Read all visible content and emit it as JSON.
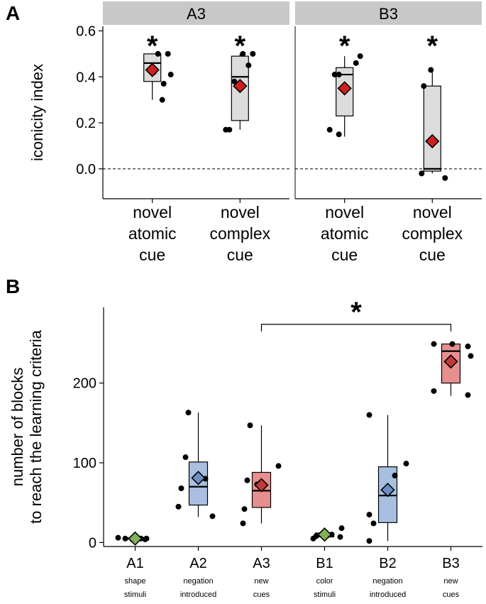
{
  "panels": {
    "A": {
      "label": "A"
    },
    "B": {
      "label": "B"
    }
  },
  "colors": {
    "box_gray": "#dcdcdc",
    "strip_gray": "#c8c8c8",
    "green": "#7fb25a",
    "blue": "#a9bfdf",
    "blue_diamond": "#6e8fc4",
    "red": "#e78f8f",
    "red_diamond": "#c0393b",
    "red_diamond_A": "#d11f1f"
  },
  "chart_data": [
    {
      "type": "box",
      "panel": "A",
      "ylabel": "iconicity index",
      "ylim": [
        -0.13,
        0.62
      ],
      "yticks": [
        "0.0",
        "0.2",
        "0.4",
        "0.6"
      ],
      "ytick_values": [
        0.0,
        0.2,
        0.4,
        0.6
      ],
      "reference_line": 0.0,
      "facets": [
        {
          "name": "A3",
          "groups": [
            {
              "label": [
                "novel",
                "atomic",
                "cue"
              ],
              "q1": 0.38,
              "median": 0.46,
              "q3": 0.5,
              "whisker_low": 0.3,
              "whisker_high": 0.5,
              "mean": 0.43,
              "points": [
                0.5,
                0.5,
                0.42,
                0.41,
                0.37,
                0.3
              ],
              "significance": "*"
            },
            {
              "label": [
                "novel",
                "complex",
                "cue"
              ],
              "q1": 0.21,
              "median": 0.4,
              "q3": 0.49,
              "whisker_low": 0.17,
              "whisker_high": 0.5,
              "mean": 0.36,
              "points": [
                0.5,
                0.5,
                0.45,
                0.38,
                0.17,
                0.17
              ],
              "significance": "*"
            }
          ]
        },
        {
          "name": "B3",
          "groups": [
            {
              "label": [
                "novel",
                "atomic",
                "cue"
              ],
              "q1": 0.23,
              "median": 0.41,
              "q3": 0.44,
              "whisker_low": 0.14,
              "whisker_high": 0.49,
              "mean": 0.35,
              "points": [
                0.49,
                0.46,
                0.41,
                0.41,
                0.17,
                0.15
              ],
              "significance": "*"
            },
            {
              "label": [
                "novel",
                "complex",
                "cue"
              ],
              "q1": -0.01,
              "median": 0.0,
              "q3": 0.36,
              "whisker_low": -0.02,
              "whisker_high": 0.43,
              "mean": 0.12,
              "points": [
                0.43,
                0.36,
                -0.02,
                -0.04
              ],
              "significance": "*"
            }
          ]
        }
      ]
    },
    {
      "type": "box",
      "panel": "B",
      "ylabel": [
        "number of blocks",
        "to reach the learning criteria"
      ],
      "ylim": [
        -5,
        295
      ],
      "yticks": [
        "0",
        "100",
        "200"
      ],
      "ytick_values": [
        0,
        100,
        200
      ],
      "groups": [
        {
          "label": "A1",
          "sublabel": [
            "shape",
            "stimuli"
          ],
          "color": "green",
          "q1": 4,
          "median": 5,
          "q3": 6,
          "whisker_low": 4,
          "whisker_high": 7,
          "mean": 5,
          "points": [
            6,
            5,
            5,
            5,
            4,
            4
          ]
        },
        {
          "label": "A2",
          "sublabel": [
            "negation",
            "introduced"
          ],
          "color": "blue",
          "q1": 47,
          "median": 70,
          "q3": 101,
          "whisker_low": 32,
          "whisker_high": 163,
          "mean": 81,
          "points": [
            163,
            107,
            80,
            68,
            45,
            33
          ]
        },
        {
          "label": "A3",
          "sublabel": [
            "new",
            "cues"
          ],
          "color": "red",
          "q1": 44,
          "median": 65,
          "q3": 88,
          "whisker_low": 24,
          "whisker_high": 147,
          "mean": 72,
          "points": [
            147,
            96,
            78,
            73,
            42,
            24
          ]
        },
        {
          "label": "B1",
          "sublabel": [
            "color",
            "stimuli"
          ],
          "color": "green",
          "q1": 7,
          "median": 9,
          "q3": 12,
          "whisker_low": 5,
          "whisker_high": 18,
          "mean": 10,
          "points": [
            18,
            10,
            9,
            8,
            7,
            5
          ]
        },
        {
          "label": "B2",
          "sublabel": [
            "negation",
            "introduced"
          ],
          "color": "blue",
          "q1": 25,
          "median": 59,
          "q3": 95,
          "whisker_low": 2,
          "whisker_high": 160,
          "mean": 66,
          "points": [
            160,
            99,
            84,
            35,
            24,
            2
          ]
        },
        {
          "label": "B3",
          "sublabel": [
            "new",
            "cues"
          ],
          "color": "red",
          "q1": 200,
          "median": 240,
          "q3": 249,
          "whisker_low": 184,
          "whisker_high": 249,
          "mean": 227,
          "points": [
            249,
            249,
            246,
            234,
            190,
            185
          ]
        }
      ],
      "comparison": {
        "from": "A3",
        "to": "B3",
        "significance": "*"
      }
    }
  ]
}
